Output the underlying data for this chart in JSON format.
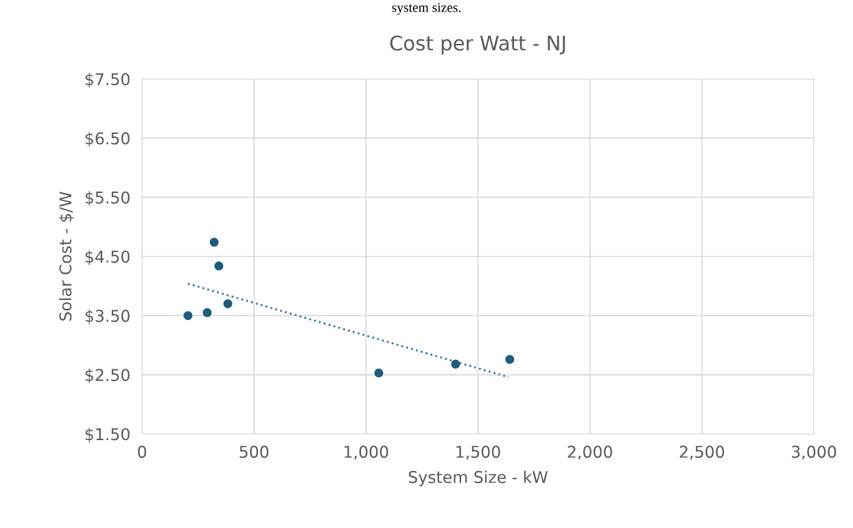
{
  "chart_data": {
    "type": "scatter",
    "title": "Cost per Watt - NJ",
    "xlabel": "System Size - kW",
    "ylabel": "Solar Cost - $/W",
    "annotations": [
      "system sizes."
    ],
    "series": [
      {
        "color": "#1f5c7a",
        "marker": "circle",
        "x": [
          205,
          291,
          322,
          343,
          383,
          1057,
          1400,
          1642
        ],
        "values": [
          3.5,
          3.55,
          4.74,
          4.34,
          3.7,
          2.53,
          2.68,
          2.76
        ]
      },
      {
        "type": "line",
        "color": "#2e7b9c",
        "line_style": "dotted",
        "marker": "none",
        "x": [
          205,
          1636
        ],
        "values": [
          4.04,
          2.46
        ]
      }
    ],
    "xlim": [
      0,
      3000
    ],
    "xticks": [
      0,
      500,
      {
        "value": 1000,
        "label": "1,000"
      },
      {
        "value": 1500,
        "label": "1,500"
      },
      {
        "value": 2000,
        "label": "2,000"
      },
      {
        "value": 2500,
        "label": "2,500"
      },
      {
        "value": 3000,
        "label": "3,000"
      }
    ],
    "ylim": [
      1.5,
      7.5
    ],
    "yticks": [
      {
        "value": 1.5,
        "label": "$1.50"
      },
      {
        "value": 2.5,
        "label": "$2.50"
      },
      {
        "value": 3.5,
        "label": "$3.50"
      },
      {
        "value": 4.5,
        "label": "$4.50"
      },
      {
        "value": 5.5,
        "label": "$5.50"
      },
      {
        "value": 6.5,
        "label": "$6.50"
      },
      {
        "value": 7.5,
        "label": "$7.50"
      }
    ],
    "grid": true,
    "legend": false
  }
}
